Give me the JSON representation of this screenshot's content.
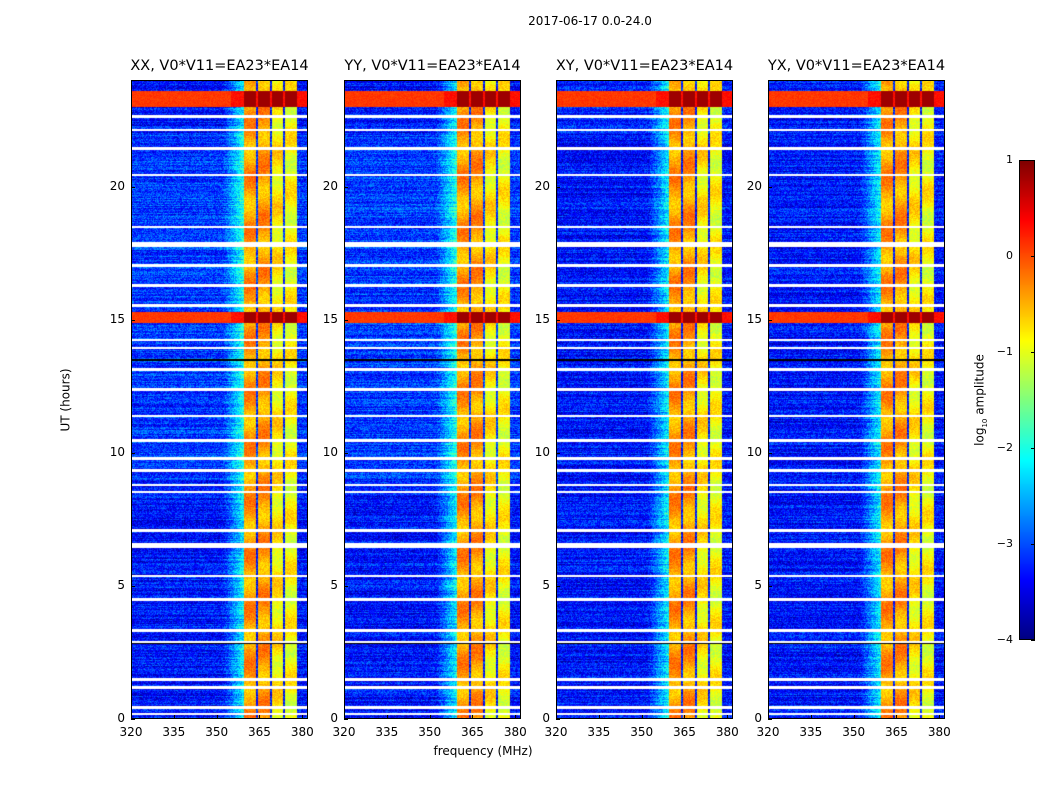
{
  "figure": {
    "suptitle": "2017-06-17 0.0-24.0"
  },
  "chart_data": {
    "type": "heatmap",
    "title": "2017-06-17 0.0-24.0",
    "xlabel": "frequency (MHz)",
    "ylabel": "UT (hours)",
    "xlim": [
      320,
      382
    ],
    "ylim": [
      0,
      24
    ],
    "xticks": [
      "320",
      "335",
      "350",
      "365",
      "380"
    ],
    "xtick_values": [
      320,
      335,
      350,
      365,
      380
    ],
    "yticks": [
      "0",
      "5",
      "10",
      "15",
      "20"
    ],
    "ytick_values": [
      0,
      5,
      10,
      15,
      20
    ],
    "colormap": "jet",
    "colorbar": {
      "label_main": "log",
      "label_sub": "10",
      "label_tail": " amplitude",
      "range": [
        -4,
        1
      ],
      "ticks": [
        "1",
        "0",
        "−1",
        "−2",
        "−3",
        "−4"
      ],
      "tick_values": [
        1,
        0,
        -1,
        -2,
        -3,
        -4
      ]
    },
    "panels": [
      {
        "name": "XX",
        "title": "XX, V0*V11=EA23*EA14"
      },
      {
        "name": "YY",
        "title": "YY, V0*V11=EA23*EA14"
      },
      {
        "name": "XY",
        "title": "XY, V0*V11=EA23*EA14"
      },
      {
        "name": "YX",
        "title": "YX, V0*V11=EA23*EA14"
      }
    ],
    "background_level_log10": -3.3,
    "signal_subbands_mhz": [
      {
        "from": 359.5,
        "to": 363.5,
        "level": -0.4
      },
      {
        "from": 364.2,
        "to": 368.5,
        "level": -0.4
      },
      {
        "from": 369.2,
        "to": 373.0,
        "level": -0.8
      },
      {
        "from": 373.7,
        "to": 378.0,
        "level": -0.9
      }
    ],
    "strong_rfi_hours": [
      {
        "from": 23.0,
        "to": 23.6,
        "level": 0.3
      },
      {
        "from": 14.9,
        "to": 15.3,
        "level": 0.3
      }
    ],
    "flagged_gaps_hours": [
      0.2,
      0.45,
      1.2,
      1.5,
      2.9,
      3.35,
      4.5,
      5.4,
      6.5,
      6.6,
      7.1,
      8.55,
      8.8,
      9.35,
      9.8,
      10.45,
      10.5,
      11.4,
      12.4,
      13.15,
      13.95,
      14.25,
      15.55,
      16.3,
      17.05,
      17.8,
      17.9,
      18.5,
      20.45,
      21.45,
      22.15,
      22.65
    ]
  }
}
